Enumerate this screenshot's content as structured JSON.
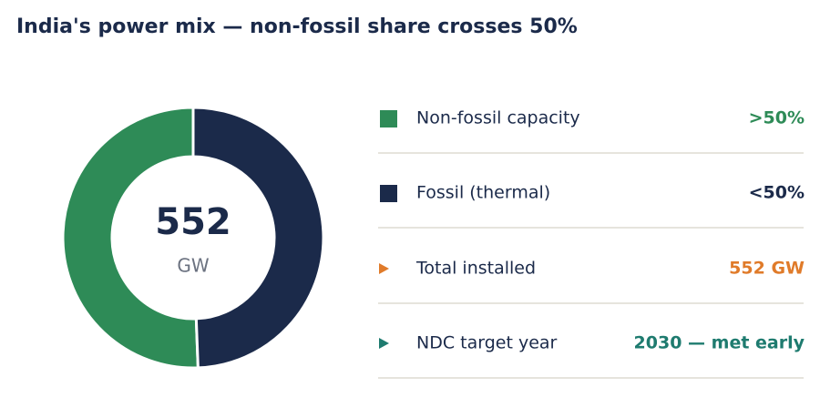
{
  "chart_data": {
    "type": "pie",
    "donut": true,
    "title": "India's power mix — non-fossil share crosses 50%",
    "center_value": 552,
    "center_label": "GW",
    "categories": [
      "Non-fossil capacity",
      "Fossil (thermal)"
    ],
    "values": [
      50.6,
      49.4
    ],
    "value_labels": [
      ">50%",
      "<50%"
    ],
    "colors": [
      "#2e8b57",
      "#1b2a4a"
    ]
  },
  "facts": [
    {
      "label": "Total installed",
      "value": "552 GW",
      "color": "#e07b2a"
    },
    {
      "label": "NDC target year",
      "value": "2030 — met early",
      "color": "#1e7b6f"
    }
  ]
}
